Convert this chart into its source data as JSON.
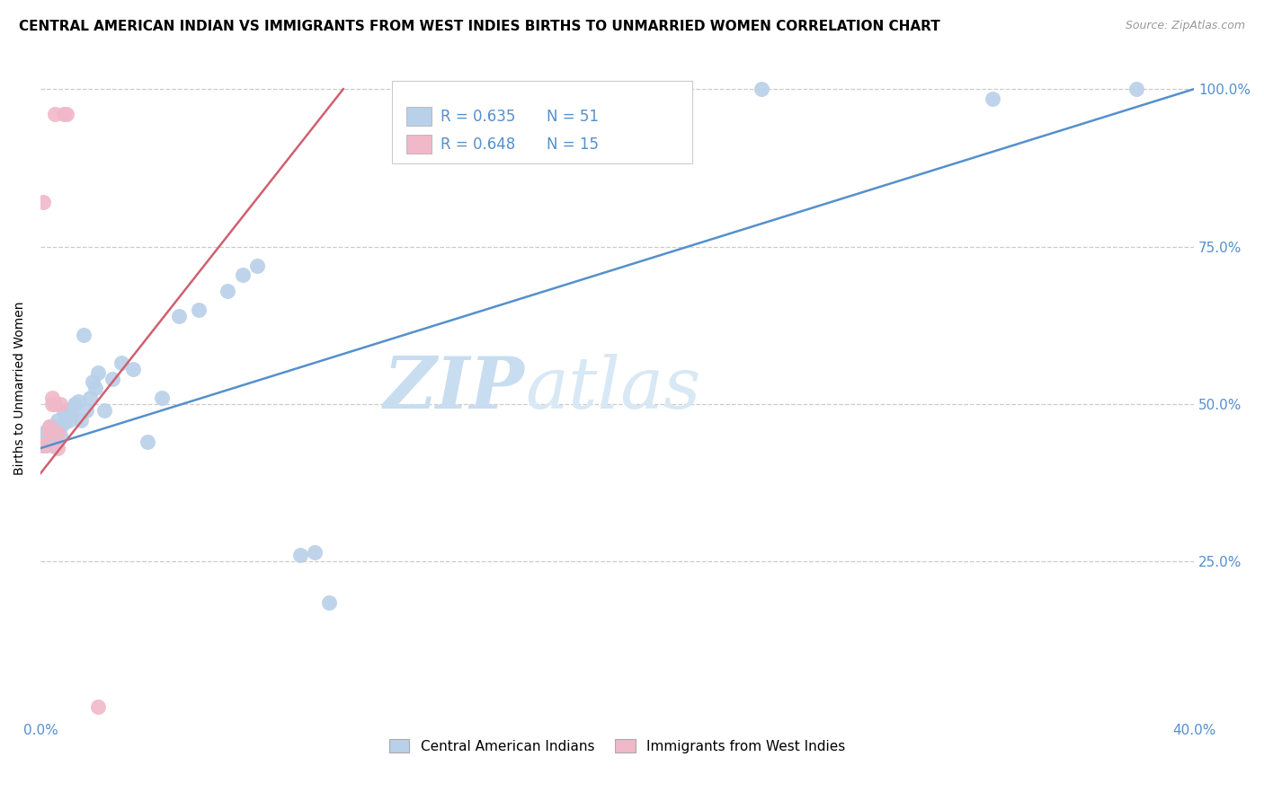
{
  "title": "CENTRAL AMERICAN INDIAN VS IMMIGRANTS FROM WEST INDIES BIRTHS TO UNMARRIED WOMEN CORRELATION CHART",
  "source": "Source: ZipAtlas.com",
  "ylabel": "Births to Unmarried Women",
  "watermark_zip": "ZIP",
  "watermark_atlas": "atlas",
  "xmin": 0.0,
  "xmax": 0.4,
  "ymin": 0.0,
  "ymax": 1.05,
  "blue_color": "#b8d0e8",
  "pink_color": "#f0b8c8",
  "blue_line_color": "#5590cc",
  "pink_line_color": "#d06070",
  "legend_blue_label": "Central American Indians",
  "legend_pink_label": "Immigrants from West Indies",
  "blue_scatter_x": [
    0.001,
    0.001,
    0.001,
    0.002,
    0.002,
    0.002,
    0.003,
    0.003,
    0.003,
    0.004,
    0.004,
    0.005,
    0.005,
    0.005,
    0.006,
    0.006,
    0.007,
    0.007,
    0.008,
    0.008,
    0.009,
    0.01,
    0.01,
    0.011,
    0.012,
    0.013,
    0.014,
    0.015,
    0.016,
    0.017,
    0.018,
    0.019,
    0.02,
    0.022,
    0.025,
    0.028,
    0.032,
    0.037,
    0.042,
    0.048,
    0.055,
    0.065,
    0.07,
    0.075,
    0.09,
    0.095,
    0.1,
    0.15,
    0.25,
    0.33,
    0.38
  ],
  "blue_scatter_y": [
    0.435,
    0.445,
    0.455,
    0.435,
    0.445,
    0.455,
    0.445,
    0.455,
    0.465,
    0.435,
    0.465,
    0.445,
    0.455,
    0.465,
    0.455,
    0.475,
    0.45,
    0.465,
    0.47,
    0.485,
    0.49,
    0.475,
    0.49,
    0.485,
    0.5,
    0.505,
    0.475,
    0.61,
    0.49,
    0.51,
    0.535,
    0.525,
    0.55,
    0.49,
    0.54,
    0.565,
    0.555,
    0.44,
    0.51,
    0.64,
    0.65,
    0.68,
    0.705,
    0.72,
    0.26,
    0.265,
    0.185,
    1.0,
    1.0,
    0.985,
    1.0
  ],
  "pink_scatter_x": [
    0.0,
    0.001,
    0.002,
    0.003,
    0.003,
    0.004,
    0.004,
    0.005,
    0.005,
    0.006,
    0.006,
    0.007,
    0.008,
    0.009,
    0.02
  ],
  "pink_scatter_y": [
    0.435,
    0.82,
    0.435,
    0.455,
    0.465,
    0.5,
    0.51,
    0.5,
    0.96,
    0.43,
    0.455,
    0.5,
    0.96,
    0.96,
    0.02
  ],
  "blue_line_x0": 0.0,
  "blue_line_x1": 0.4,
  "blue_line_y0": 0.43,
  "blue_line_y1": 1.0,
  "pink_line_x0": 0.0,
  "pink_line_x1": 0.105,
  "pink_line_y0": 0.39,
  "pink_line_y1": 1.0,
  "ytick_positions": [
    0.0,
    0.25,
    0.5,
    0.75,
    1.0
  ],
  "ytick_labels_right": [
    "",
    "25.0%",
    "50.0%",
    "75.0%",
    "100.0%"
  ],
  "xtick_positions": [
    0.0,
    0.05,
    0.1,
    0.15,
    0.2,
    0.25,
    0.3,
    0.35,
    0.4
  ],
  "xtick_labels": [
    "0.0%",
    "",
    "",
    "",
    "",
    "",
    "",
    "",
    "40.0%"
  ],
  "legend_R_blue": "R = 0.635",
  "legend_N_blue": "N = 51",
  "legend_R_pink": "R = 0.648",
  "legend_N_pink": "N = 15",
  "tick_color": "#5590cc",
  "title_fontsize": 11,
  "axis_label_fontsize": 10,
  "tick_fontsize": 11
}
